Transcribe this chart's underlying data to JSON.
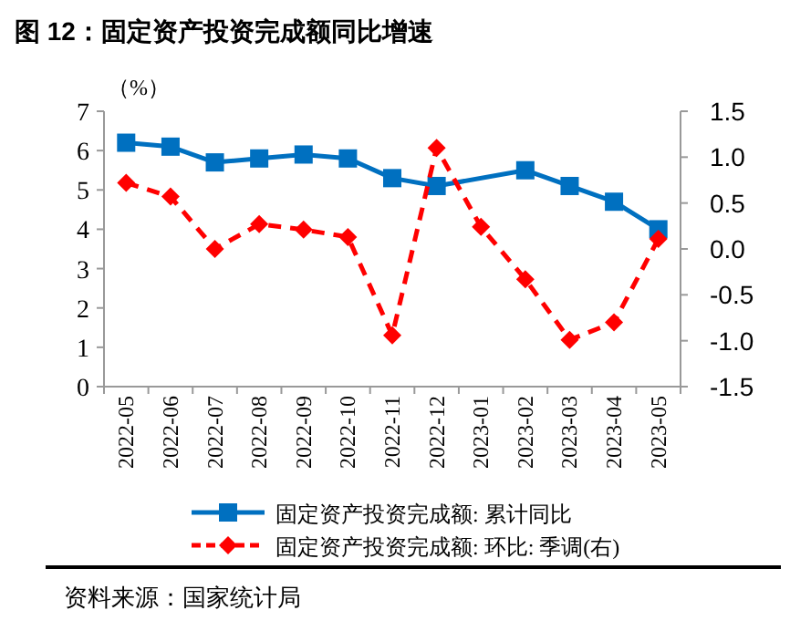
{
  "chart_data": {
    "type": "line",
    "title": "图 12：固定资产投资完成额同比增速",
    "ylabel": "（%）",
    "categories": [
      "2022-05",
      "2022-06",
      "2022-07",
      "2022-08",
      "2022-09",
      "2022-10",
      "2022-11",
      "2022-12",
      "2023-01",
      "2023-02",
      "2023-03",
      "2023-04",
      "2023-05"
    ],
    "series": [
      {
        "name": "固定资产投资完成额: 累计同比",
        "color": "#0070c0",
        "marker": "square",
        "line_style": "solid",
        "values": [
          6.2,
          6.1,
          5.7,
          5.8,
          5.9,
          5.8,
          5.3,
          5.1,
          null,
          5.5,
          5.1,
          4.7,
          4.0
        ]
      },
      {
        "name": "固定资产投资完成额: 环比: 季调(右)",
        "color": "#ff0000",
        "marker": "diamond",
        "line_style": "dashed",
        "axis": "y2",
        "values": [
          0.72,
          0.57,
          0.0,
          0.27,
          0.21,
          0.13,
          -0.94,
          1.1,
          0.24,
          -0.33,
          -0.99,
          -0.8,
          0.11
        ]
      }
    ],
    "ylim": [
      0,
      7
    ],
    "yticks": [
      0,
      1,
      2,
      3,
      4,
      5,
      6,
      7
    ],
    "y2lim": [
      -1.5,
      1.5
    ],
    "y2ticks": [
      {
        "value": -1.5,
        "label": "-1.5"
      },
      {
        "value": -1.0,
        "label": "-1.0"
      },
      {
        "value": -0.5,
        "label": "-0.5"
      },
      {
        "value": 0,
        "label": "0.0"
      },
      {
        "value": 0.5,
        "label": "0.5"
      },
      {
        "value": 1.0,
        "label": "1.0"
      },
      {
        "value": 1.5,
        "label": "1.5"
      }
    ],
    "grid": false,
    "legend": "bottom",
    "annotations": [
      "资料来源：国家统计局"
    ]
  }
}
